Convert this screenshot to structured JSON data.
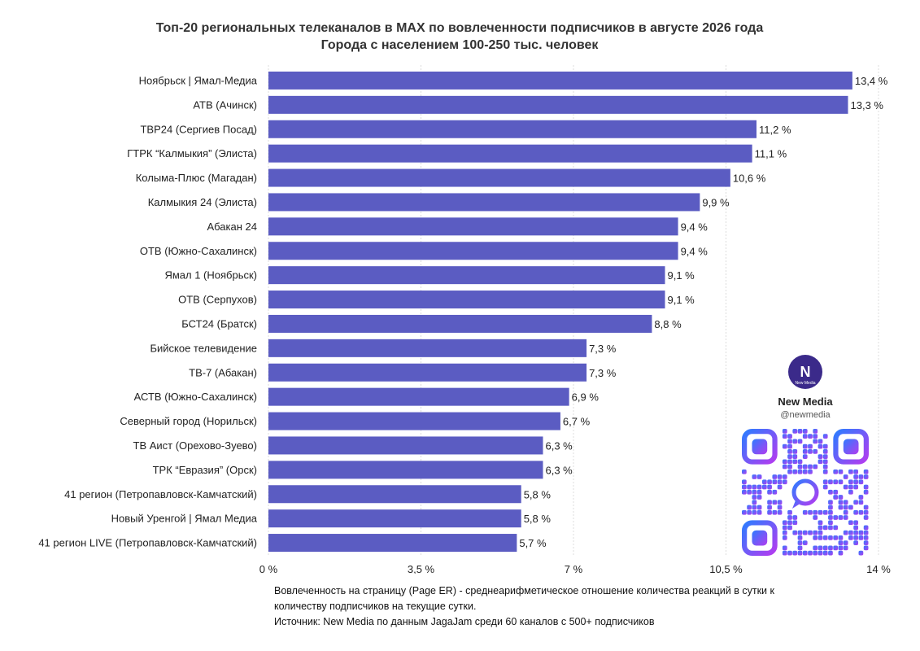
{
  "chart_data": {
    "type": "bar",
    "orientation": "horizontal",
    "title": "Топ-20 региональных телеканалов в MAX по вовлеченности подписчиков в августе 2026 года",
    "subtitle": "Города с населением 100-250 тыс. человек",
    "categories": [
      "Ноябрьск | Ямал-Медиа",
      "АТВ (Ачинск)",
      "ТВР24 (Сергиев Посад)",
      "ГТРК “Калмыкия” (Элиста)",
      "Колыма-Плюс (Магадан)",
      "Калмыкия 24 (Элиста)",
      "Абакан 24",
      "ОТВ (Южно-Сахалинск)",
      "Ямал 1 (Ноябрьск)",
      "ОТВ (Серпухов)",
      "БСТ24 (Братск)",
      "Бийское телевидение",
      "ТВ-7 (Абакан)",
      "АСТВ (Южно-Сахалинск)",
      "Северный город (Норильск)",
      "ТВ Аист (Орехово-Зуево)",
      "ТРК “Евразия” (Орск)",
      "41 регион (Петропавловск-Камчатский)",
      "Новый Уренгой | Ямал Медиа",
      "41 регион LIVE (Петропавловск-Камчатский)"
    ],
    "values": [
      13.4,
      13.3,
      11.2,
      11.1,
      10.6,
      9.9,
      9.4,
      9.4,
      9.1,
      9.1,
      8.8,
      7.3,
      7.3,
      6.9,
      6.7,
      6.3,
      6.3,
      5.8,
      5.8,
      5.7
    ],
    "value_labels": [
      "13,4 %",
      "13,3 %",
      "11,2 %",
      "11,1 %",
      "10,6 %",
      "9,9 %",
      "9,4 %",
      "9,4 %",
      "9,1 %",
      "9,1 %",
      "8,8 %",
      "7,3 %",
      "7,3 %",
      "6,9 %",
      "6,7 %",
      "6,3 %",
      "6,3 %",
      "5,8 %",
      "5,8 %",
      "5,7 %"
    ],
    "xlim": [
      0,
      14
    ],
    "xticks": [
      0,
      3.5,
      7,
      10.5,
      14
    ],
    "xtick_labels": [
      "0 %",
      "3,5 %",
      "7 %",
      "10,5 %",
      "14 %"
    ],
    "grid": true,
    "bar_color": "#5b5cc2"
  },
  "footnote": {
    "line1": "Вовлеченность на страницу (Page ER) - среднеарифметическое отношение количества реакций в сутки к",
    "line2": "количеству подписчиков на текущие сутки.",
    "line3": "Источник: New Media по данным JagaJam среди 60 каналов с 500+ подписчиков"
  },
  "brand": {
    "name": "New Media",
    "handle": "@newmedia",
    "logo_letter": "N",
    "logo_small": "New Media",
    "logo_icon": "new-media-logo-icon",
    "qr_icon": "qr-code-icon"
  }
}
